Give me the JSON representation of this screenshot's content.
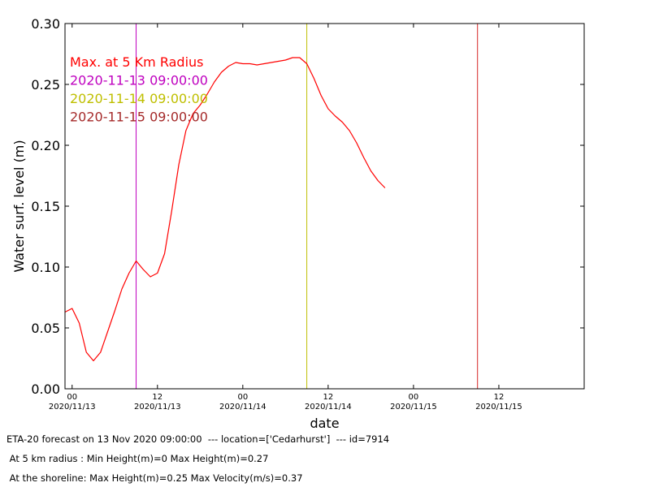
{
  "chart_data": {
    "type": "line",
    "title": "",
    "xlabel": "date",
    "ylabel": "Water surf. level (m)",
    "ylim": [
      0,
      0.3
    ],
    "yticks": [
      "0.00",
      "0.05",
      "0.10",
      "0.15",
      "0.20",
      "0.25",
      "0.30"
    ],
    "xlim": [
      "2020-11-12 23:00",
      "2020-11-16 00:00"
    ],
    "xticks": [
      {
        "t": "2020-11-13 00:00",
        "top": "00",
        "bottom": "2020/11/13"
      },
      {
        "t": "2020-11-13 12:00",
        "top": "12",
        "bottom": "2020/11/13"
      },
      {
        "t": "2020-11-14 00:00",
        "top": "00",
        "bottom": "2020/11/14"
      },
      {
        "t": "2020-11-14 12:00",
        "top": "12",
        "bottom": "2020/11/14"
      },
      {
        "t": "2020-11-15 00:00",
        "top": "00",
        "bottom": "2020/11/15"
      },
      {
        "t": "2020-11-15 12:00",
        "top": "12",
        "bottom": "2020/11/15"
      }
    ],
    "grid": false,
    "legend_placement": "top-left",
    "series": [
      {
        "name": "Max. at 5 Km Radius",
        "color": "#ff0000",
        "points": [
          [
            "2020-11-12 23:00",
            0.063
          ],
          [
            "2020-11-13 00:00",
            0.066
          ],
          [
            "2020-11-13 01:00",
            0.054
          ],
          [
            "2020-11-13 02:00",
            0.03
          ],
          [
            "2020-11-13 03:00",
            0.023
          ],
          [
            "2020-11-13 04:00",
            0.03
          ],
          [
            "2020-11-13 05:00",
            0.047
          ],
          [
            "2020-11-13 06:00",
            0.064
          ],
          [
            "2020-11-13 07:00",
            0.082
          ],
          [
            "2020-11-13 08:00",
            0.095
          ],
          [
            "2020-11-13 09:00",
            0.105
          ],
          [
            "2020-11-13 10:00",
            0.098
          ],
          [
            "2020-11-13 11:00",
            0.092
          ],
          [
            "2020-11-13 12:00",
            0.095
          ],
          [
            "2020-11-13 13:00",
            0.111
          ],
          [
            "2020-11-13 14:00",
            0.146
          ],
          [
            "2020-11-13 15:00",
            0.184
          ],
          [
            "2020-11-13 16:00",
            0.212
          ],
          [
            "2020-11-13 17:00",
            0.226
          ],
          [
            "2020-11-13 18:00",
            0.233
          ],
          [
            "2020-11-13 19:00",
            0.242
          ],
          [
            "2020-11-13 20:00",
            0.252
          ],
          [
            "2020-11-13 21:00",
            0.26
          ],
          [
            "2020-11-13 22:00",
            0.265
          ],
          [
            "2020-11-13 23:00",
            0.268
          ],
          [
            "2020-11-14 00:00",
            0.267
          ],
          [
            "2020-11-14 01:00",
            0.267
          ],
          [
            "2020-11-14 02:00",
            0.266
          ],
          [
            "2020-11-14 03:00",
            0.267
          ],
          [
            "2020-11-14 04:00",
            0.268
          ],
          [
            "2020-11-14 05:00",
            0.269
          ],
          [
            "2020-11-14 06:00",
            0.27
          ],
          [
            "2020-11-14 07:00",
            0.272
          ],
          [
            "2020-11-14 08:00",
            0.272
          ],
          [
            "2020-11-14 09:00",
            0.267
          ],
          [
            "2020-11-14 10:00",
            0.255
          ],
          [
            "2020-11-14 11:00",
            0.241
          ],
          [
            "2020-11-14 12:00",
            0.23
          ],
          [
            "2020-11-14 13:00",
            0.224
          ],
          [
            "2020-11-14 14:00",
            0.219
          ],
          [
            "2020-11-14 15:00",
            0.212
          ],
          [
            "2020-11-14 16:00",
            0.202
          ],
          [
            "2020-11-14 17:00",
            0.19
          ],
          [
            "2020-11-14 18:00",
            0.179
          ],
          [
            "2020-11-14 19:00",
            0.171
          ],
          [
            "2020-11-14 20:00",
            0.165
          ]
        ]
      }
    ],
    "vlines": [
      {
        "label": "2020-11-13 09:00:00",
        "t": "2020-11-13 09:00",
        "color": "#bf00bf"
      },
      {
        "label": "2020-11-14 09:00:00",
        "t": "2020-11-14 09:00",
        "color": "#bfbf00"
      },
      {
        "label": "2020-11-15 09:00:00",
        "t": "2020-11-15 09:00",
        "color": "#a52a2a",
        "line_color": "#d62728"
      }
    ]
  },
  "footer": {
    "forecast_line": "ETA-20 forecast on 13 Nov 2020 09:00:00  --- location=['Cedarhurst']  --- id=7914",
    "radius_line": " At 5 km radius : Min Height(m)=0 Max Height(m)=0.27",
    "shoreline_line": " At the shoreline: Max Height(m)=0.25 Max Velocity(m/s)=0.37"
  }
}
